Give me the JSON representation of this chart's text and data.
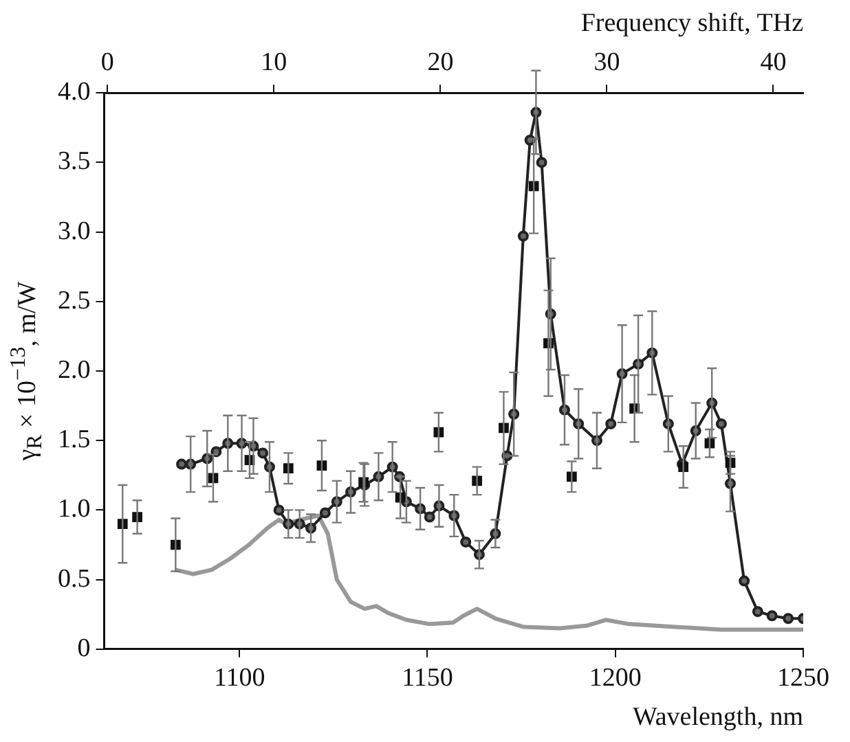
{
  "chart_data": {
    "type": "line",
    "xlabel": "Wavelength, nm",
    "x2label": "Frequency shift, THz",
    "ylabel": "γ$_{R}$ × 10$^{−13}$, m/W",
    "xlim": [
      1064,
      1250
    ],
    "xticks": [
      1100,
      1150,
      1200,
      1250
    ],
    "x2lim": [
      -0.2,
      41.8
    ],
    "x2ticks": [
      0,
      10,
      20,
      30,
      40
    ],
    "ylim": [
      0,
      4
    ],
    "yticks": [
      0,
      {
        "value": 0.5,
        "label": "0.5"
      },
      {
        "value": 1,
        "label": "1.0"
      },
      {
        "value": 1.5,
        "label": "1.5"
      },
      {
        "value": 2,
        "label": "2.0"
      },
      {
        "value": 2.5,
        "label": "2.5"
      },
      {
        "value": 3,
        "label": "3.0"
      },
      {
        "value": 3.5,
        "label": "3.5"
      },
      {
        "value": 4,
        "label": "4.0"
      }
    ],
    "grid": false,
    "legend": false,
    "series": [
      {
        "type": "line",
        "color": "#999999",
        "marker": "none",
        "x": [
          1083,
          1087.7,
          1092.6,
          1097.5,
          1102.5,
          1107.4,
          1110.5,
          1112.3,
          1116,
          1121,
          1123.5,
          1125.9,
          1129.6,
          1133.3,
          1136.4,
          1139.5,
          1144.4,
          1150.6,
          1156.8,
          1159.6,
          1163.2,
          1168.1,
          1175.5,
          1185.3,
          1192.6,
          1197.5,
          1203.7,
          1215.9,
          1228.2,
          1250
        ],
        "values": [
          0.57,
          0.54,
          0.57,
          0.65,
          0.75,
          0.87,
          0.93,
          0.9,
          0.93,
          0.96,
          0.83,
          0.5,
          0.34,
          0.29,
          0.31,
          0.26,
          0.21,
          0.18,
          0.19,
          0.24,
          0.29,
          0.22,
          0.16,
          0.15,
          0.17,
          0.21,
          0.18,
          0.16,
          0.14,
          0.14
        ]
      },
      {
        "type": "line",
        "color": "#222222",
        "marker": "circle",
        "x": [
          1084.6,
          1087,
          1091.4,
          1093.8,
          1096.9,
          1100.6,
          1103.7,
          1106.2,
          1108,
          1110.5,
          1113,
          1116,
          1119,
          1122.8,
          1125.9,
          1129.6,
          1133.3,
          1137,
          1140.7,
          1142.6,
          1144.4,
          1148.1,
          1150.6,
          1153.1,
          1157.1,
          1160.2,
          1163.8,
          1168.1,
          1171.2,
          1173,
          1175.5,
          1177.3,
          1178.9,
          1180.4,
          1182.8,
          1186.5,
          1190.2,
          1195.1,
          1198.8,
          1201.8,
          1206.1,
          1209.8,
          1214.1,
          1217.8,
          1221.4,
          1225.7,
          1228.2,
          1230.6,
          1234.3,
          1237.9,
          1241.7,
          1246,
          1250
        ],
        "values": [
          1.33,
          1.33,
          1.37,
          1.42,
          1.48,
          1.48,
          1.46,
          1.41,
          1.31,
          1,
          0.9,
          0.9,
          0.87,
          0.98,
          1.06,
          1.13,
          1.18,
          1.24,
          1.31,
          1.24,
          1.06,
          1.01,
          0.95,
          1.03,
          0.96,
          0.77,
          0.68,
          0.83,
          1.39,
          1.69,
          2.97,
          3.66,
          3.86,
          3.5,
          2.41,
          1.72,
          1.62,
          1.5,
          1.62,
          1.98,
          2.05,
          2.13,
          1.62,
          1.33,
          1.57,
          1.77,
          1.62,
          1.19,
          0.49,
          0.27,
          0.24,
          0.22,
          0.22
        ],
        "errors": [
          null,
          0.2,
          0.2,
          null,
          0.2,
          0.2,
          0.2,
          null,
          0.18,
          null,
          0.1,
          0.1,
          0.1,
          null,
          0.15,
          0.15,
          0.15,
          0.17,
          0.18,
          null,
          0.15,
          0.15,
          null,
          0.15,
          0.15,
          null,
          0.1,
          0.1,
          null,
          0.3,
          null,
          null,
          0.3,
          null,
          0.4,
          0.25,
          0.25,
          0.2,
          null,
          0.35,
          0.35,
          0.3,
          0.2,
          null,
          0.2,
          0.25,
          null,
          0.2,
          null,
          null,
          null,
          null,
          null
        ]
      },
      {
        "type": "scatter",
        "color": "#111111",
        "marker": "square",
        "x": [
          1068.9,
          1072.8,
          1083,
          1093,
          1102.7,
          1113,
          1121.9,
          1133,
          1142.8,
          1153,
          1163.2,
          1170.3,
          1178.3,
          1182.2,
          1188.4,
          1205.1,
          1218.1,
          1225.1,
          1230.6
        ],
        "values": [
          0.9,
          0.95,
          0.75,
          1.23,
          1.36,
          1.3,
          1.32,
          1.2,
          1.09,
          1.56,
          1.21,
          1.59,
          3.33,
          2.2,
          1.24,
          1.73,
          1.31,
          1.48,
          1.34
        ],
        "errors": [
          0.28,
          0.12,
          0.19,
          0.17,
          0.13,
          0.11,
          0.18,
          0.14,
          0.15,
          0.14,
          0.1,
          0.26,
          0.34,
          0.38,
          0.11,
          0.24,
          0.15,
          0.1,
          0.08
        ]
      }
    ]
  }
}
